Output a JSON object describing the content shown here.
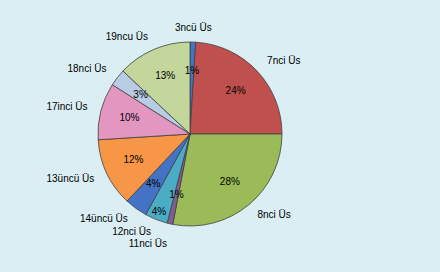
{
  "chart_data": {
    "type": "pie",
    "categories": [
      "3ncü Üs",
      "7nci Üs",
      "8nci Üs",
      "11nci Üs",
      "12nci Üs",
      "14üncü Üs",
      "13üncü Üs",
      "17inci Üs",
      "18nci Üs",
      "19ncu Üs"
    ],
    "values": [
      1,
      24,
      28,
      1,
      4,
      4,
      12,
      10,
      3,
      13
    ],
    "value_labels": [
      "1%",
      "24%",
      "28%",
      "1%",
      "4%",
      "4%",
      "12%",
      "10%",
      "3%",
      "13%"
    ],
    "colors": [
      "#4472C4",
      "#C0504D",
      "#9BBB59",
      "#7F5F91",
      "#4BACC6",
      "#4472C4",
      "#F79646",
      "#E397C0",
      "#B8CCE4",
      "#C3D69B"
    ],
    "data_labels": true
  }
}
